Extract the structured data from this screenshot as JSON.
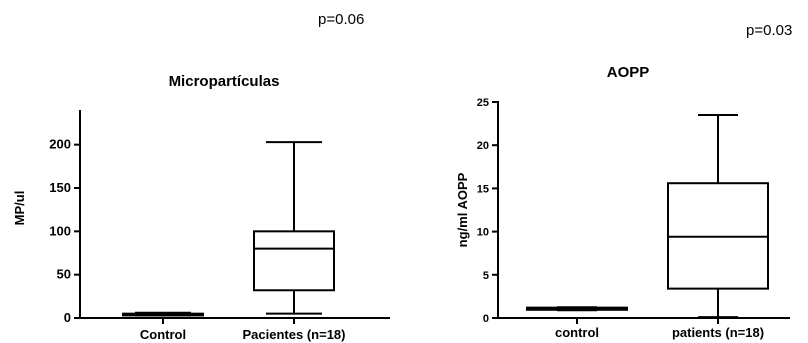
{
  "chart_data": [
    {
      "type": "box",
      "title": "Micropartículas",
      "annotation": "p=0.06",
      "ylabel": "MP/ul",
      "ylim": [
        0,
        240
      ],
      "yticks": [
        0,
        50,
        100,
        150,
        200
      ],
      "categories": [
        "Control",
        "Pacientes (n=18)"
      ],
      "boxes": [
        {
          "min": 3,
          "q1": 3,
          "median": 4,
          "q3": 5,
          "max": 6
        },
        {
          "min": 5,
          "q1": 32,
          "median": 80,
          "q3": 100,
          "max": 203
        }
      ],
      "grid": false
    },
    {
      "type": "box",
      "title": "AOPP",
      "annotation": "p=0.03",
      "ylabel": "ng/ml AOPP",
      "ylim": [
        0,
        25
      ],
      "yticks": [
        0,
        5,
        10,
        15,
        20,
        25
      ],
      "categories": [
        "control",
        "patients (n=18)"
      ],
      "boxes": [
        {
          "min": 0.9,
          "q1": 0.95,
          "median": 1.1,
          "q3": 1.2,
          "max": 1.25
        },
        {
          "min": 0.1,
          "q1": 3.4,
          "median": 9.4,
          "q3": 15.6,
          "max": 23.5
        }
      ],
      "grid": false
    }
  ]
}
